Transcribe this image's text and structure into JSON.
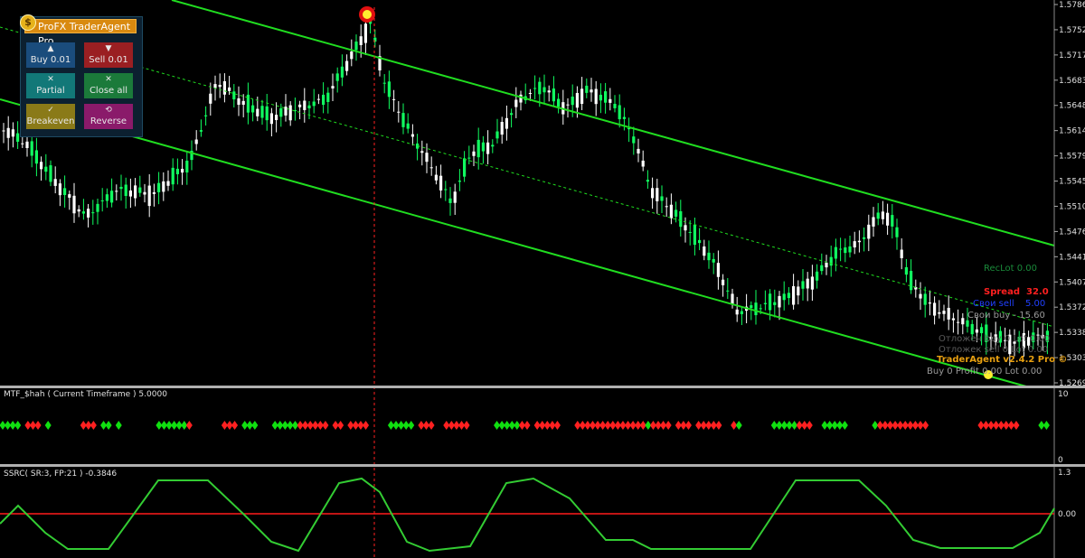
{
  "price_axis": {
    "labels": [
      "1.57860",
      "1.57520",
      "1.57170",
      "1.56830",
      "1.56480",
      "1.56140",
      "1.55790",
      "1.55450",
      "1.55100",
      "1.54760",
      "1.54410",
      "1.54070",
      "1.53720",
      "1.53380",
      "1.53030",
      "1.52690"
    ]
  },
  "panel": {
    "title": "ProFX TraderAgent Pro",
    "buttons": [
      {
        "icon": "▲",
        "label": "Buy 0.01"
      },
      {
        "icon": "▼",
        "label": "Sell 0.01"
      },
      {
        "icon": "✕",
        "label": "Partial"
      },
      {
        "icon": "✕",
        "label": "Close all"
      },
      {
        "icon": "✓",
        "label": "Breakeven"
      },
      {
        "icon": "⟲",
        "label": "Reverse"
      }
    ]
  },
  "info": {
    "reclot": "RecLot   0.00",
    "spread_label": "Spread",
    "spread_value": "32.0",
    "sell_label": "Свои sell",
    "sell_value": "5.00",
    "buy_line": "Свои buy  - 15.60",
    "pending1": "Отложен buy 0   Lot 0.00",
    "pending2": "Отложек sell 0   Lot 0.00",
    "brand": "TraderAgent v2.4.2 Pro ©",
    "buy_line2": "Buy 0  Profit 0.00  Lot 0.00"
  },
  "sub1": {
    "title": "MTF_$hah ( Current Timeframe ) 5.0000",
    "axis_top": "10",
    "axis_bottom": "0"
  },
  "sub2": {
    "title": "SSRC( SR:3, FP:21 ) -0.3846",
    "axis_top": "1.3",
    "axis_mid": "0.00"
  },
  "colors": {
    "bull": "#10ff60",
    "bear": "#ffffff",
    "channel": "#20dd20",
    "signal_red": "#ff2020",
    "signal_green": "#10e010",
    "zero_line": "#ff1a1a",
    "ssrc_line": "#33cc33"
  },
  "chart_data": {
    "type": "candlestick",
    "diamond_signals": "GGGG_RRR_G______RRR_GG_G_______GGGGGGR______RRR_GGG___GGGGGRRRRRR_RR_RRRR____GGGGG_RRR__RRRRR_____GGGGGRR_RRRRR___RRRRRRRRRRRRRRGRRRR_RRR_RRRRR__RG______GGGGGRRR__GGGGG_____GRRRRRRRRRR__________RRRRRRRR____GG"
  }
}
